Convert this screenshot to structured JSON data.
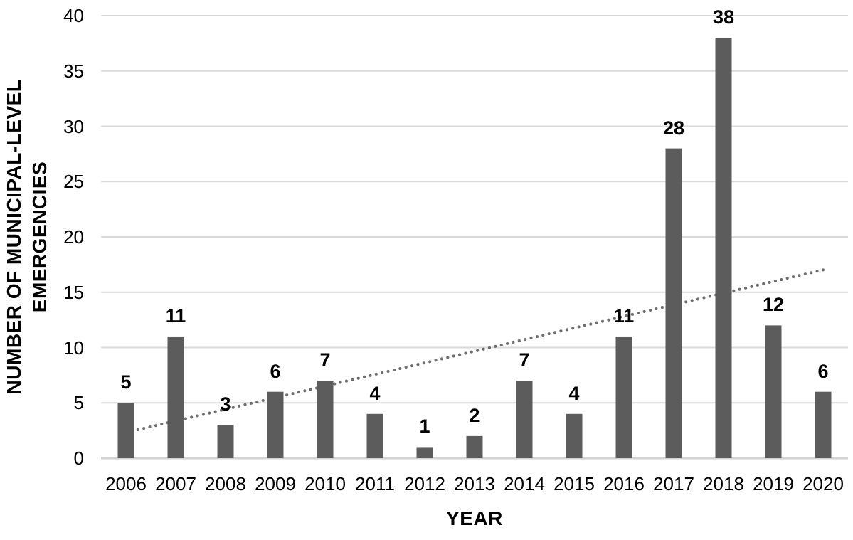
{
  "chart_data": {
    "type": "bar",
    "title": "",
    "xlabel": "YEAR",
    "ylabel": "NUMBER OF MUNICIPAL-LEVEL EMERGENCIES",
    "ylabel_lines": [
      "NUMBER OF MUNICIPAL-LEVEL",
      "EMERGENCIES"
    ],
    "categories": [
      "2006",
      "2007",
      "2008",
      "2009",
      "2010",
      "2011",
      "2012",
      "2013",
      "2014",
      "2015",
      "2016",
      "2017",
      "2018",
      "2019",
      "2020"
    ],
    "values": [
      5,
      11,
      3,
      6,
      7,
      4,
      1,
      2,
      7,
      4,
      11,
      28,
      38,
      12,
      6
    ],
    "data_labels": [
      5,
      11,
      3,
      6,
      7,
      4,
      1,
      2,
      7,
      4,
      11,
      28,
      38,
      12,
      6
    ],
    "ylim": [
      0,
      40
    ],
    "yticks": [
      0,
      5,
      10,
      15,
      20,
      25,
      30,
      35,
      40
    ],
    "grid": "horizontal",
    "legend": "none",
    "trendline": {
      "type": "linear",
      "style": "dotted",
      "start_value": 2.32,
      "end_value": 17.02
    },
    "colors": {
      "bar": "#5c5c5c",
      "gridline": "#d9d9d9",
      "axis_line": "#d2d2d2",
      "trendline": "#6e6e6e",
      "text": "#000000",
      "background": "#ffffff"
    }
  }
}
